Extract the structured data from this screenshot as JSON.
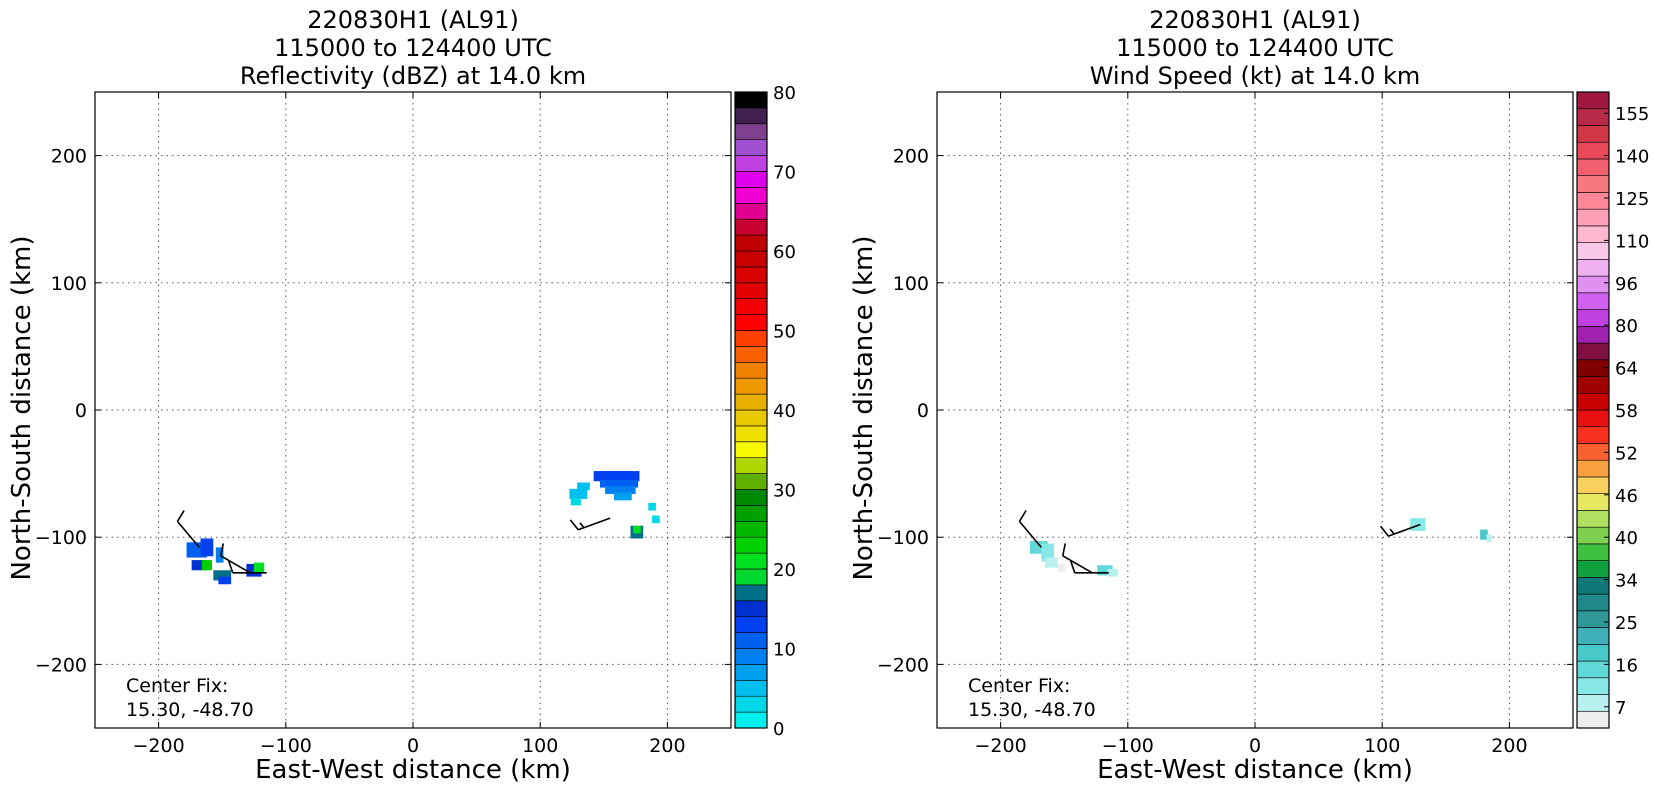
{
  "panels": [
    {
      "title_lines": [
        "220830H1 (AL91)",
        "115000 to 124400 UTC",
        "Reflectivity (dBZ) at 14.0 km"
      ],
      "xlabel": "East-West distance (km)",
      "ylabel": "North-South distance (km)",
      "note_lines": [
        "Center Fix:",
        "15.30, -48.70"
      ]
    },
    {
      "title_lines": [
        "220830H1 (AL91)",
        "115000 to 124400 UTC",
        "Wind Speed (kt) at 14.0 km"
      ],
      "xlabel": "East-West distance (km)",
      "ylabel": "North-South distance (km)",
      "note_lines": [
        "Center Fix:",
        "15.30, -48.70"
      ]
    }
  ],
  "chart_data": [
    {
      "type": "heatmap",
      "title": "220830H1 (AL91) 115000 to 124400 UTC Reflectivity (dBZ) at 14.0 km",
      "xlabel": "East-West distance (km)",
      "ylabel": "North-South distance (km)",
      "xlim": [
        -250,
        250
      ],
      "ylim": [
        -250,
        250
      ],
      "xticks": [
        -200,
        -100,
        0,
        100,
        200
      ],
      "yticks": [
        -200,
        -100,
        0,
        100,
        200
      ],
      "grid": true,
      "colorbar": {
        "label": "dBZ",
        "min": 0,
        "max": 80,
        "step": 2.5,
        "ticks": [
          0,
          10,
          20,
          30,
          40,
          50,
          60,
          70,
          80
        ],
        "colors": [
          "#00f0f0",
          "#00d8e8",
          "#00c0f0",
          "#00a0f0",
          "#0080f0",
          "#0060f0",
          "#0040f0",
          "#0030d0",
          "#007088",
          "#00d830",
          "#00e020",
          "#00d000",
          "#00b800",
          "#00a000",
          "#008800",
          "#60b000",
          "#b0d800",
          "#f8f800",
          "#f0e000",
          "#e8c800",
          "#e8b000",
          "#f09800",
          "#f08000",
          "#f86000",
          "#ff4000",
          "#ff0000",
          "#f00000",
          "#e00000",
          "#d80000",
          "#c80000",
          "#c00000",
          "#c80030",
          "#e00090",
          "#f000d0",
          "#e000f0",
          "#c040e0",
          "#a050d0",
          "#804090",
          "#402050",
          "#000000"
        ]
      },
      "echoes": [
        {
          "x": -170,
          "y": -110,
          "w": 16,
          "h": 12,
          "value": 10
        },
        {
          "x": -162,
          "y": -108,
          "w": 10,
          "h": 14,
          "value": 12
        },
        {
          "x": -168,
          "y": -122,
          "w": 12,
          "h": 8,
          "value": 14
        },
        {
          "x": -162,
          "y": -122,
          "w": 8,
          "h": 8,
          "value": 22
        },
        {
          "x": -152,
          "y": -114,
          "w": 6,
          "h": 12,
          "value": 8
        },
        {
          "x": -150,
          "y": -130,
          "w": 14,
          "h": 8,
          "value": 16
        },
        {
          "x": -148,
          "y": -134,
          "w": 10,
          "h": 6,
          "value": 13
        },
        {
          "x": -125,
          "y": -126,
          "w": 12,
          "h": 10,
          "value": 14
        },
        {
          "x": -121,
          "y": -124,
          "w": 8,
          "h": 8,
          "value": 20
        },
        {
          "x": 160,
          "y": -52,
          "w": 36,
          "h": 8,
          "value": 12
        },
        {
          "x": 162,
          "y": -58,
          "w": 30,
          "h": 6,
          "value": 10
        },
        {
          "x": 163,
          "y": -63,
          "w": 24,
          "h": 6,
          "value": 8
        },
        {
          "x": 165,
          "y": -68,
          "w": 14,
          "h": 6,
          "value": 7
        },
        {
          "x": 134,
          "y": -60,
          "w": 10,
          "h": 6,
          "value": 4
        },
        {
          "x": 130,
          "y": -66,
          "w": 14,
          "h": 8,
          "value": 4
        },
        {
          "x": 128,
          "y": -72,
          "w": 8,
          "h": 6,
          "value": 3
        },
        {
          "x": 188,
          "y": -76,
          "w": 6,
          "h": 6,
          "value": 2
        },
        {
          "x": 191,
          "y": -86,
          "w": 6,
          "h": 6,
          "value": 3
        },
        {
          "x": 176,
          "y": -96,
          "w": 10,
          "h": 10,
          "value": 16
        },
        {
          "x": 176,
          "y": -94,
          "w": 6,
          "h": 6,
          "value": 20
        }
      ],
      "wind_barbs": [
        {
          "x": -168,
          "y": -108,
          "dir": 320,
          "speed_kt": 10
        },
        {
          "x": -128,
          "y": -128,
          "dir": 300,
          "speed_kt": 10
        },
        {
          "x": -115,
          "y": -128,
          "dir": 270,
          "speed_kt": 10
        },
        {
          "x": 155,
          "y": -85,
          "dir": 250,
          "speed_kt": 15
        }
      ]
    },
    {
      "type": "heatmap",
      "title": "220830H1 (AL91) 115000 to 124400 UTC Wind Speed (kt) at 14.0 km",
      "xlabel": "East-West distance (km)",
      "ylabel": "North-South distance (km)",
      "xlim": [
        -250,
        250
      ],
      "ylim": [
        -250,
        250
      ],
      "xticks": [
        -200,
        -100,
        0,
        100,
        200
      ],
      "yticks": [
        -200,
        -100,
        0,
        100,
        200
      ],
      "grid": true,
      "colorbar": {
        "label": "kt",
        "ticks": [
          7,
          16,
          25,
          34,
          40,
          46,
          52,
          58,
          64,
          80,
          96,
          110,
          125,
          140,
          155
        ],
        "colors": [
          "#eeeeee",
          "#b8f0f0",
          "#88e8e8",
          "#60d8d8",
          "#48c8c8",
          "#40b0b8",
          "#309898",
          "#208888",
          "#107878",
          "#10a040",
          "#40c040",
          "#80d050",
          "#b0e060",
          "#e8e860",
          "#f8d060",
          "#f8a040",
          "#f86030",
          "#f83020",
          "#e81010",
          "#c80000",
          "#a00000",
          "#800000",
          "#801040",
          "#a020b0",
          "#c040e0",
          "#d060f0",
          "#e090f0",
          "#f0b0f0",
          "#f8c8e8",
          "#ffb8d0",
          "#ffa0b8",
          "#ff8898",
          "#f87880",
          "#f06070",
          "#e84858",
          "#d03848",
          "#b82848",
          "#a01840"
        ]
      },
      "echoes": [
        {
          "x": -170,
          "y": -108,
          "w": 14,
          "h": 10,
          "value": 20
        },
        {
          "x": -163,
          "y": -112,
          "w": 10,
          "h": 14,
          "value": 16
        },
        {
          "x": -160,
          "y": -120,
          "w": 10,
          "h": 8,
          "value": 12
        },
        {
          "x": -152,
          "y": -124,
          "w": 6,
          "h": 6,
          "value": 7
        },
        {
          "x": -142,
          "y": -122,
          "w": 6,
          "h": 6,
          "value": 10
        },
        {
          "x": -118,
          "y": -126,
          "w": 12,
          "h": 8,
          "value": 22
        },
        {
          "x": -112,
          "y": -128,
          "w": 8,
          "h": 6,
          "value": 14
        },
        {
          "x": 128,
          "y": -90,
          "w": 12,
          "h": 10,
          "value": 18
        },
        {
          "x": 180,
          "y": -98,
          "w": 6,
          "h": 8,
          "value": 24
        },
        {
          "x": 184,
          "y": -101,
          "w": 4,
          "h": 6,
          "value": 12
        }
      ],
      "wind_barbs": [
        {
          "x": -168,
          "y": -108,
          "dir": 320,
          "speed_kt": 10
        },
        {
          "x": -128,
          "y": -128,
          "dir": 300,
          "speed_kt": 10
        },
        {
          "x": -115,
          "y": -128,
          "dir": 270,
          "speed_kt": 10
        },
        {
          "x": 130,
          "y": -90,
          "dir": 250,
          "speed_kt": 15
        }
      ]
    }
  ]
}
